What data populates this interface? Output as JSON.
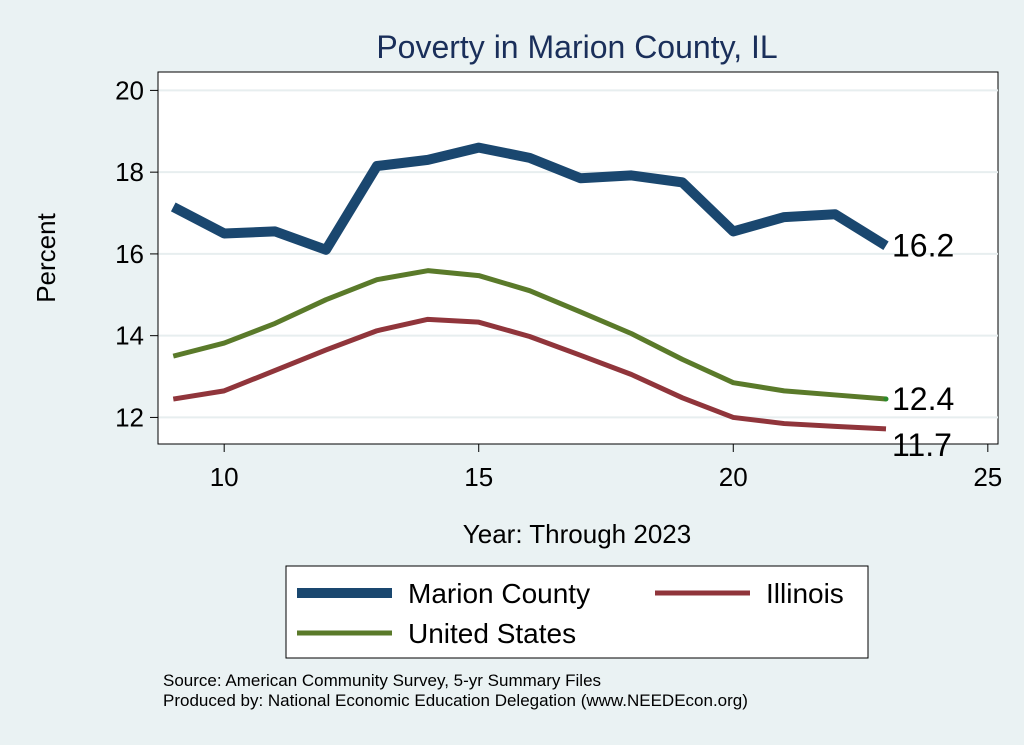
{
  "chart_data": {
    "type": "line",
    "title": "Poverty in Marion County, IL",
    "xlabel": "Year: Through 2023",
    "ylabel": "Percent",
    "xlim": [
      8.7,
      25.2
    ],
    "ylim": [
      11.35,
      20.45
    ],
    "xticks": [
      10,
      15,
      20,
      25
    ],
    "yticks": [
      12,
      14,
      16,
      18,
      20
    ],
    "x": [
      9,
      10,
      11,
      12,
      13,
      14,
      15,
      16,
      17,
      18,
      19,
      20,
      21,
      22,
      23
    ],
    "series": [
      {
        "name": "Marion County",
        "color": "#1a476f",
        "width": 10,
        "values": [
          17.15,
          16.5,
          16.55,
          16.1,
          18.15,
          18.3,
          18.6,
          18.35,
          17.85,
          17.92,
          17.75,
          16.55,
          16.9,
          16.97,
          16.2
        ],
        "end_label": "16.2"
      },
      {
        "name": "United States",
        "color": "#5a7a2a",
        "width": 5,
        "values": [
          13.5,
          13.82,
          14.3,
          14.88,
          15.37,
          15.59,
          15.47,
          15.1,
          14.58,
          14.05,
          13.42,
          12.85,
          12.65,
          12.55,
          12.45
        ],
        "end_label": "12.4"
      },
      {
        "name": "Illinois",
        "color": "#90353b",
        "width": 5,
        "values": [
          12.45,
          12.65,
          13.15,
          13.65,
          14.12,
          14.4,
          14.33,
          13.98,
          13.52,
          13.05,
          12.48,
          12.0,
          11.85,
          11.78,
          11.72
        ],
        "end_label": "11.7"
      }
    ],
    "legend": {
      "placement": "bottom",
      "entries": [
        {
          "name": "Marion County",
          "color": "#1a476f",
          "width": 10
        },
        {
          "name": "Illinois",
          "color": "#90353b",
          "width": 5
        },
        {
          "name": "United States",
          "color": "#5a7a2a",
          "width": 5
        }
      ]
    }
  },
  "notes": {
    "source": "Source: American Community Survey, 5-yr Summary Files",
    "produced_by": "Produced by: National Economic Education Delegation (www.NEEDEcon.org)"
  }
}
